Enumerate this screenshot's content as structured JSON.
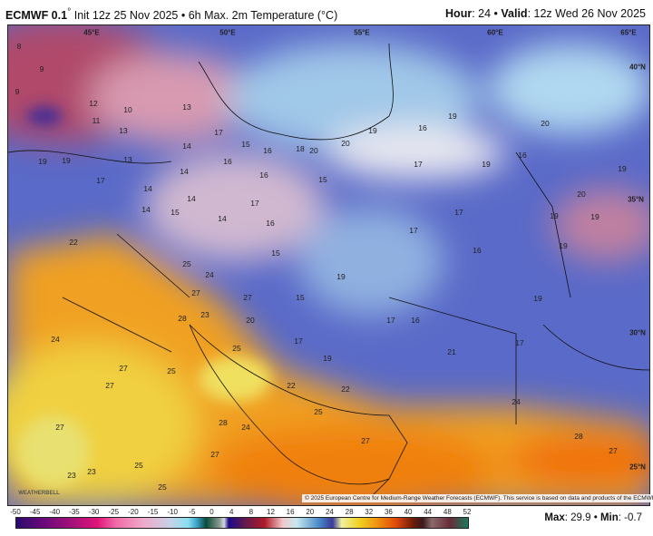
{
  "header": {
    "model": "ECMWF 0.1",
    "degree": "°",
    "init": "Init 12z 25 Nov 2025 • 6h Max. 2m Temperature (°C)",
    "hour_label": "Hour",
    "hour": "24",
    "valid_label": "Valid",
    "valid": "12z Wed 26 Nov 2025"
  },
  "grid_labels": [
    "45°E",
    "50°E",
    "55°E",
    "60°E",
    "65°E",
    "40°N",
    "35°N",
    "30°N",
    "25°N"
  ],
  "temperature_labels": [
    "8",
    "9",
    "9",
    "12",
    "10",
    "13",
    "11",
    "13",
    "14",
    "17",
    "15",
    "16",
    "18",
    "20",
    "20",
    "19",
    "16",
    "19",
    "20",
    "19",
    "19",
    "13",
    "14",
    "16",
    "16",
    "15",
    "17",
    "19",
    "16",
    "19",
    "17",
    "14",
    "14",
    "17",
    "20",
    "14",
    "15",
    "14",
    "16",
    "17",
    "19",
    "19",
    "17",
    "16",
    "19",
    "22",
    "25",
    "24",
    "15",
    "19",
    "27",
    "27",
    "15",
    "19",
    "28",
    "23",
    "20",
    "17",
    "16",
    "24",
    "17",
    "25",
    "19",
    "21",
    "17",
    "27",
    "25",
    "22",
    "22",
    "24",
    "27",
    "28",
    "24",
    "27",
    "25",
    "27",
    "28",
    "27",
    "27",
    "25",
    "23",
    "23",
    "25"
  ],
  "copyright": "© 2025 European Centre for Medium-Range Weather Forecasts (ECMWF). This service is based on data and products of the ECMWF.",
  "logo_text": "WEATHERBELL",
  "colorbar": {
    "ticks": [
      "-50",
      "-45",
      "-40",
      "-35",
      "-30",
      "-25",
      "-20",
      "-15",
      "-10",
      "-5",
      "0",
      "4",
      "8",
      "12",
      "16",
      "20",
      "24",
      "28",
      "32",
      "36",
      "40",
      "44",
      "48",
      "52"
    ]
  },
  "stats": {
    "max_label": "Max",
    "max": "29.9",
    "min_label": "Min",
    "min": "-0.7"
  }
}
